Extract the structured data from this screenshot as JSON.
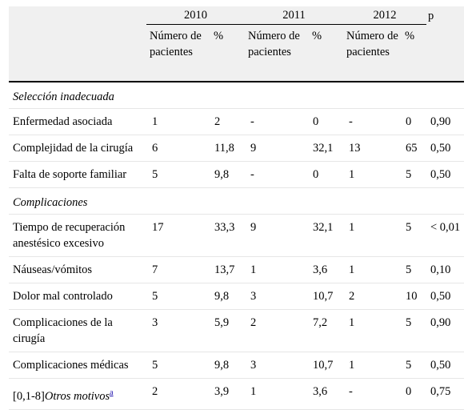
{
  "header": {
    "years": [
      "2010",
      "2011",
      "2012"
    ],
    "p_label": "p",
    "sub": [
      "Número de pacientes",
      "%",
      "Número de pacientes",
      "%",
      "Número de pacientes",
      "%"
    ]
  },
  "sections": [
    {
      "title": "Selección inadecuada",
      "rows": [
        {
          "label": "Enfermedad asociada",
          "cells": [
            "1",
            "2",
            "-",
            "0",
            "-",
            "0",
            "0,90"
          ]
        },
        {
          "label": "Complejidad de la cirugía",
          "cells": [
            "6",
            "11,8",
            "9",
            "32,1",
            "13",
            "65",
            "0,50"
          ]
        },
        {
          "label": "Falta de soporte familiar",
          "cells": [
            "5",
            "9,8",
            "-",
            "0",
            "1",
            "5",
            "0,50"
          ]
        }
      ]
    },
    {
      "title": "Complicaciones",
      "rows": [
        {
          "label": "Tiempo de recuperación anestésico excesivo",
          "cells": [
            "17",
            "33,3",
            "9",
            "32,1",
            "1",
            "5",
            "< 0,01"
          ]
        },
        {
          "label": "Náuseas/vómitos",
          "cells": [
            "7",
            "13,7",
            "1",
            "3,6",
            "1",
            "5",
            "0,10"
          ]
        },
        {
          "label": "Dolor mal controlado",
          "cells": [
            "5",
            "9,8",
            "3",
            "10,7",
            "2",
            "10",
            "0,50"
          ]
        },
        {
          "label": "Complicaciones de la cirugía",
          "cells": [
            "3",
            "5,9",
            "2",
            "7,2",
            "1",
            "5",
            "0,90"
          ]
        },
        {
          "label": "Complicaciones médicas",
          "cells": [
            "5",
            "9,8",
            "3",
            "10,7",
            "1",
            "5",
            "0,50"
          ]
        }
      ]
    }
  ],
  "last_row": {
    "prefix": "[0,1-8]",
    "label": "Otros motivos",
    "footnote": "a",
    "cells": [
      "2",
      "3,9",
      "1",
      "3,6",
      "-",
      "0",
      "0,75"
    ]
  }
}
